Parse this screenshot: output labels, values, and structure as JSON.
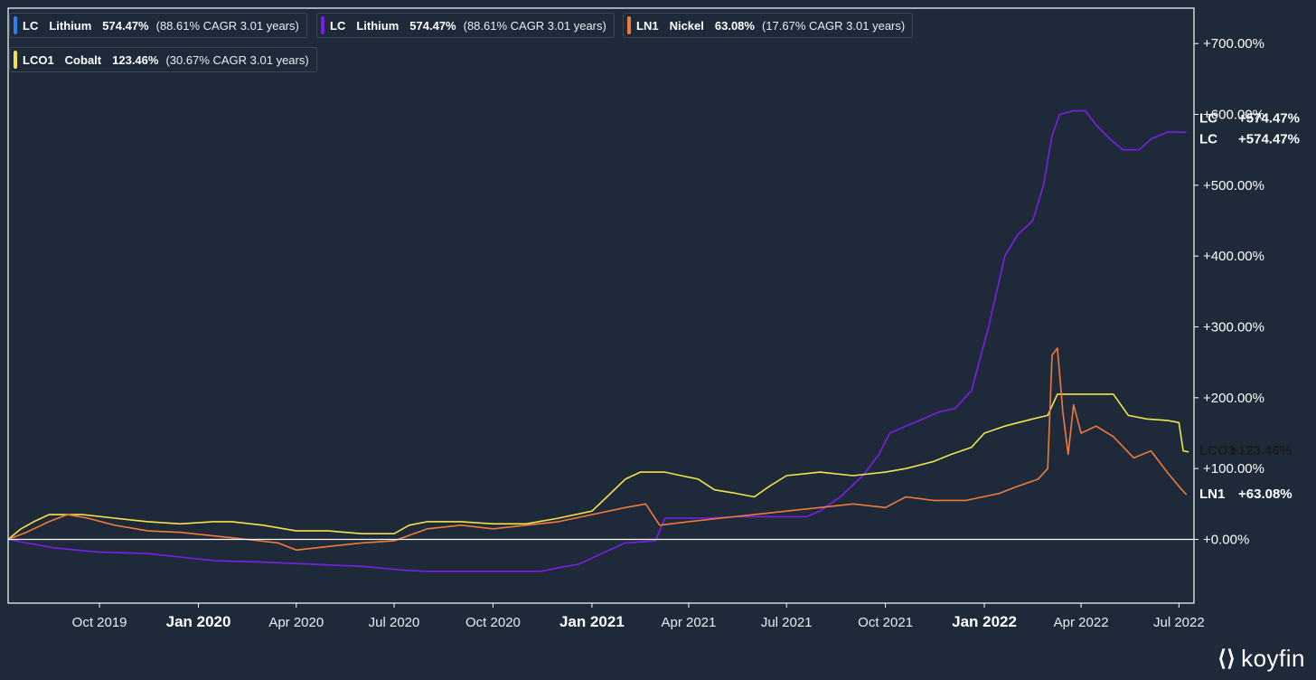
{
  "legend": [
    {
      "ticker": "LC",
      "name": "Lithium",
      "pct": "574.47%",
      "cagr": "(88.61% CAGR 3.01 years)",
      "color": "#2f80ed"
    },
    {
      "ticker": "LC",
      "name": "Lithium",
      "pct": "574.47%",
      "cagr": "(88.61% CAGR 3.01 years)",
      "color": "#7b1fe8"
    },
    {
      "ticker": "LN1",
      "name": "Nickel",
      "pct": "63.08%",
      "cagr": "(17.67% CAGR 3.01 years)",
      "color": "#f07a3a"
    },
    {
      "ticker": "LCO1",
      "name": "Cobalt",
      "pct": "123.46%",
      "cagr": "(30.67% CAGR 3.01 years)",
      "color": "#f2e34a"
    }
  ],
  "last_labels": [
    {
      "ticker": "LC",
      "value": "+574.47%",
      "color": "#ffffff"
    },
    {
      "ticker": "LC",
      "value": "+574.47%",
      "color": "#ffffff"
    },
    {
      "ticker": "LCO1",
      "value": "+123.46%",
      "color": "#1a1a1a"
    },
    {
      "ticker": "LN1",
      "value": "+63.08%",
      "color": "#ffffff"
    }
  ],
  "logo": {
    "text": "koyfin",
    "icon": "koyfin-logo-icon"
  },
  "chart_data": {
    "type": "line",
    "title": "",
    "xlabel": "",
    "ylabel": "",
    "xlim": [
      "2019-07-08",
      "2022-07-15"
    ],
    "ylim": [
      -90,
      750
    ],
    "y_ticks": [
      0,
      100,
      200,
      300,
      400,
      500,
      600,
      700
    ],
    "y_tick_labels": [
      "+0.00%",
      "+100.00%",
      "+200.00%",
      "+300.00%",
      "+400.00%",
      "+500.00%",
      "+600.00%",
      "+700.00%"
    ],
    "x_ticks": [
      {
        "date": "2019-10-01",
        "label": "Oct 2019",
        "major": false
      },
      {
        "date": "2020-01-01",
        "label": "Jan 2020",
        "major": true
      },
      {
        "date": "2020-04-01",
        "label": "Apr 2020",
        "major": false
      },
      {
        "date": "2020-07-01",
        "label": "Jul 2020",
        "major": false
      },
      {
        "date": "2020-10-01",
        "label": "Oct 2020",
        "major": false
      },
      {
        "date": "2021-01-01",
        "label": "Jan 2021",
        "major": true
      },
      {
        "date": "2021-04-01",
        "label": "Apr 2021",
        "major": false
      },
      {
        "date": "2021-07-01",
        "label": "Jul 2021",
        "major": false
      },
      {
        "date": "2021-10-01",
        "label": "Oct 2021",
        "major": false
      },
      {
        "date": "2022-01-01",
        "label": "Jan 2022",
        "major": true
      },
      {
        "date": "2022-04-01",
        "label": "Apr 2022",
        "major": false
      },
      {
        "date": "2022-07-01",
        "label": "Jul 2022",
        "major": false
      }
    ],
    "grid": false,
    "legend_position": "top-left",
    "series": [
      {
        "name": "LC Lithium",
        "color": "#7b1fe8",
        "values": [
          [
            "2019-07-08",
            0
          ],
          [
            "2019-07-25",
            -5
          ],
          [
            "2019-08-20",
            -12
          ],
          [
            "2019-10-01",
            -18
          ],
          [
            "2019-11-15",
            -20
          ],
          [
            "2020-01-15",
            -30
          ],
          [
            "2020-03-01",
            -32
          ],
          [
            "2020-04-15",
            -35
          ],
          [
            "2020-06-01",
            -38
          ],
          [
            "2020-07-15",
            -44
          ],
          [
            "2020-08-01",
            -45
          ],
          [
            "2020-10-01",
            -45
          ],
          [
            "2020-11-15",
            -45
          ],
          [
            "2020-12-01",
            -40
          ],
          [
            "2020-12-20",
            -35
          ],
          [
            "2021-01-10",
            -20
          ],
          [
            "2021-02-01",
            -5
          ],
          [
            "2021-03-01",
            -2
          ],
          [
            "2021-03-10",
            30
          ],
          [
            "2021-04-15",
            30
          ],
          [
            "2021-05-15",
            32
          ],
          [
            "2021-06-15",
            32
          ],
          [
            "2021-07-10",
            32
          ],
          [
            "2021-07-20",
            32
          ],
          [
            "2021-08-01",
            40
          ],
          [
            "2021-08-20",
            60
          ],
          [
            "2021-09-10",
            90
          ],
          [
            "2021-09-25",
            120
          ],
          [
            "2021-10-05",
            150
          ],
          [
            "2021-10-20",
            160
          ],
          [
            "2021-11-05",
            170
          ],
          [
            "2021-11-20",
            180
          ],
          [
            "2021-12-05",
            185
          ],
          [
            "2021-12-20",
            210
          ],
          [
            "2022-01-05",
            300
          ],
          [
            "2022-01-20",
            400
          ],
          [
            "2022-02-01",
            430
          ],
          [
            "2022-02-15",
            450
          ],
          [
            "2022-02-25",
            500
          ],
          [
            "2022-03-05",
            570
          ],
          [
            "2022-03-12",
            600
          ],
          [
            "2022-03-25",
            605
          ],
          [
            "2022-04-05",
            605
          ],
          [
            "2022-04-15",
            585
          ],
          [
            "2022-04-28",
            565
          ],
          [
            "2022-05-10",
            550
          ],
          [
            "2022-05-25",
            550
          ],
          [
            "2022-06-05",
            565
          ],
          [
            "2022-06-20",
            575
          ],
          [
            "2022-07-01",
            575
          ],
          [
            "2022-07-08",
            574.47
          ]
        ]
      },
      {
        "name": "LCO1 Cobalt",
        "color": "#f2e34a",
        "values": [
          [
            "2019-07-08",
            0
          ],
          [
            "2019-07-20",
            15
          ],
          [
            "2019-08-01",
            25
          ],
          [
            "2019-08-15",
            35
          ],
          [
            "2019-09-15",
            35
          ],
          [
            "2019-10-15",
            30
          ],
          [
            "2019-11-15",
            25
          ],
          [
            "2019-12-15",
            22
          ],
          [
            "2020-01-15",
            25
          ],
          [
            "2020-02-01",
            25
          ],
          [
            "2020-03-01",
            20
          ],
          [
            "2020-04-01",
            12
          ],
          [
            "2020-05-01",
            12
          ],
          [
            "2020-06-01",
            8
          ],
          [
            "2020-07-01",
            8
          ],
          [
            "2020-07-15",
            20
          ],
          [
            "2020-08-01",
            25
          ],
          [
            "2020-09-01",
            25
          ],
          [
            "2020-10-01",
            22
          ],
          [
            "2020-11-01",
            22
          ],
          [
            "2020-12-01",
            30
          ],
          [
            "2021-01-01",
            40
          ],
          [
            "2021-01-15",
            60
          ],
          [
            "2021-02-01",
            85
          ],
          [
            "2021-02-15",
            95
          ],
          [
            "2021-03-10",
            95
          ],
          [
            "2021-03-25",
            90
          ],
          [
            "2021-04-10",
            85
          ],
          [
            "2021-04-25",
            70
          ],
          [
            "2021-05-15",
            65
          ],
          [
            "2021-06-01",
            60
          ],
          [
            "2021-06-15",
            75
          ],
          [
            "2021-07-01",
            90
          ],
          [
            "2021-08-01",
            95
          ],
          [
            "2021-09-01",
            90
          ],
          [
            "2021-10-01",
            95
          ],
          [
            "2021-10-20",
            100
          ],
          [
            "2021-11-15",
            110
          ],
          [
            "2021-12-01",
            120
          ],
          [
            "2021-12-20",
            130
          ],
          [
            "2022-01-01",
            150
          ],
          [
            "2022-01-20",
            160
          ],
          [
            "2022-02-15",
            170
          ],
          [
            "2022-03-01",
            175
          ],
          [
            "2022-03-10",
            205
          ],
          [
            "2022-04-01",
            205
          ],
          [
            "2022-05-01",
            205
          ],
          [
            "2022-05-15",
            175
          ],
          [
            "2022-06-01",
            170
          ],
          [
            "2022-06-20",
            168
          ],
          [
            "2022-07-01",
            165
          ],
          [
            "2022-07-05",
            125
          ],
          [
            "2022-07-10",
            123.46
          ]
        ]
      },
      {
        "name": "LN1 Nickel",
        "color": "#f07a3a",
        "values": [
          [
            "2019-07-08",
            0
          ],
          [
            "2019-07-25",
            10
          ],
          [
            "2019-08-15",
            25
          ],
          [
            "2019-09-01",
            35
          ],
          [
            "2019-09-20",
            30
          ],
          [
            "2019-10-15",
            20
          ],
          [
            "2019-11-15",
            12
          ],
          [
            "2019-12-15",
            10
          ],
          [
            "2020-01-15",
            5
          ],
          [
            "2020-02-15",
            0
          ],
          [
            "2020-03-15",
            -5
          ],
          [
            "2020-04-01",
            -15
          ],
          [
            "2020-05-01",
            -10
          ],
          [
            "2020-06-01",
            -5
          ],
          [
            "2020-07-01",
            -2
          ],
          [
            "2020-08-01",
            15
          ],
          [
            "2020-09-01",
            20
          ],
          [
            "2020-10-01",
            15
          ],
          [
            "2020-11-01",
            20
          ],
          [
            "2020-12-01",
            25
          ],
          [
            "2021-01-01",
            35
          ],
          [
            "2021-02-01",
            45
          ],
          [
            "2021-02-20",
            50
          ],
          [
            "2021-03-05",
            20
          ],
          [
            "2021-04-01",
            25
          ],
          [
            "2021-05-01",
            30
          ],
          [
            "2021-06-01",
            35
          ],
          [
            "2021-07-01",
            40
          ],
          [
            "2021-08-01",
            45
          ],
          [
            "2021-09-01",
            50
          ],
          [
            "2021-10-01",
            45
          ],
          [
            "2021-10-20",
            60
          ],
          [
            "2021-11-15",
            55
          ],
          [
            "2021-12-15",
            55
          ],
          [
            "2022-01-15",
            65
          ],
          [
            "2022-02-01",
            75
          ],
          [
            "2022-02-20",
            85
          ],
          [
            "2022-03-01",
            100
          ],
          [
            "2022-03-05",
            260
          ],
          [
            "2022-03-10",
            270
          ],
          [
            "2022-03-15",
            180
          ],
          [
            "2022-03-20",
            120
          ],
          [
            "2022-03-25",
            190
          ],
          [
            "2022-04-01",
            150
          ],
          [
            "2022-04-15",
            160
          ],
          [
            "2022-05-01",
            145
          ],
          [
            "2022-05-20",
            115
          ],
          [
            "2022-06-05",
            125
          ],
          [
            "2022-06-20",
            95
          ],
          [
            "2022-07-01",
            75
          ],
          [
            "2022-07-08",
            63.08
          ]
        ]
      }
    ]
  }
}
